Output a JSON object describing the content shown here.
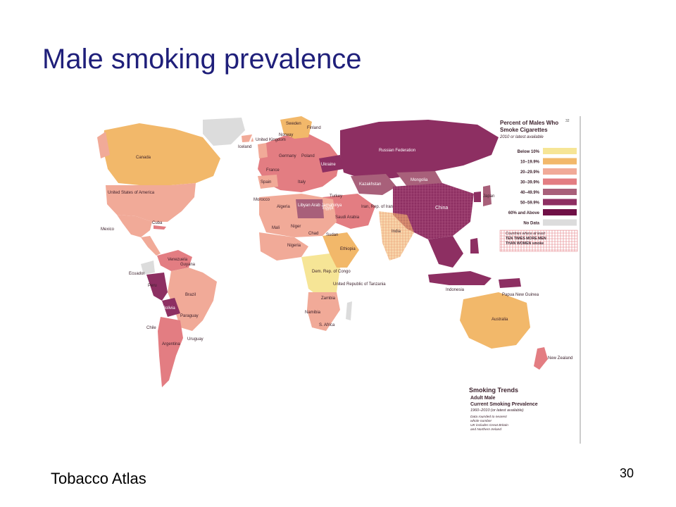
{
  "slide": {
    "title": "Male smoking prevalence",
    "source": "Tobacco Atlas",
    "page_number": "30"
  },
  "map": {
    "page_number": "32",
    "legend": {
      "title_line1": "Percent of Males Who",
      "title_line2": "Smoke Cigarettes",
      "subtitle": "2010 or latest available",
      "categories": [
        {
          "label": "Below 10%",
          "color": "#f6e596"
        },
        {
          "label": "10–19.9%",
          "color": "#f2b86a"
        },
        {
          "label": "20–29.9%",
          "color": "#f1aa98"
        },
        {
          "label": "30–39.9%",
          "color": "#e37d82"
        },
        {
          "label": "40–49.9%",
          "color": "#a8607a"
        },
        {
          "label": "50–59.9%",
          "color": "#8d2f62"
        },
        {
          "label": "60% and Above",
          "color": "#6f1046"
        },
        {
          "label": "No Data",
          "color": "#dcdcdc"
        }
      ],
      "hatch_note": [
        "Countries where at least",
        "TEN TIMES MORE MEN",
        "THAN WOMEN smoke"
      ]
    },
    "trends": {
      "title": "Smoking Trends",
      "line1": "Adult Male",
      "line2": "Current Smoking Prevalence",
      "line3": "1960–2010 (or latest available)",
      "notes": [
        "Data rounded to nearest",
        "whole number",
        "UK includes Great Britain",
        "and Northern Ireland"
      ]
    },
    "labels": {
      "canada": "Canada",
      "usa": "United States of America",
      "mexico": "Mexico",
      "cuba": "Cuba",
      "venezuela": "Venezuela",
      "brazil": "Brazil",
      "peru": "Peru",
      "bolivia": "Bolivia",
      "chile": "Chile",
      "argentina": "Argentina",
      "paraguay": "Paraguay",
      "uruguay": "Uruguay",
      "ecuador": "Ecuador",
      "guyana": "Guyana",
      "iceland": "Iceland",
      "sweden": "Sweden",
      "norway": "Norway",
      "finland": "Finland",
      "uk": "United Kingdom",
      "germany": "Germany",
      "poland": "Poland",
      "ukraine": "Ukraine",
      "france": "France",
      "spain": "Spain",
      "italy": "Italy",
      "turkey": "Turkey",
      "russia": "Russian Federation",
      "kazakhstan": "Kazakhstan",
      "mongolia": "Mongolia",
      "china": "China",
      "japan": "Japan",
      "india": "India",
      "iran": "Iran, Rep. of Iran",
      "saudi": "Saudi Arabia",
      "egypt": "Egypt",
      "algeria": "Algeria",
      "libya": "Libyan Arab Jamahiriya",
      "morocco": "Morocco",
      "mali": "Mali",
      "niger": "Niger",
      "chad": "Chad",
      "sudan": "Sudan",
      "nigeria": "Nigeria",
      "ethiopia": "Ethiopia",
      "drc": "Dem. Rep. of Congo",
      "tanzania": "United Republic of Tanzania",
      "zambia": "Zambia",
      "namibia": "Namibia",
      "south_africa": "S. Africa",
      "indonesia": "Indonesia",
      "australia": "Australia",
      "new_zealand": "New Zealand",
      "papua": "Papua New Guinea"
    }
  }
}
